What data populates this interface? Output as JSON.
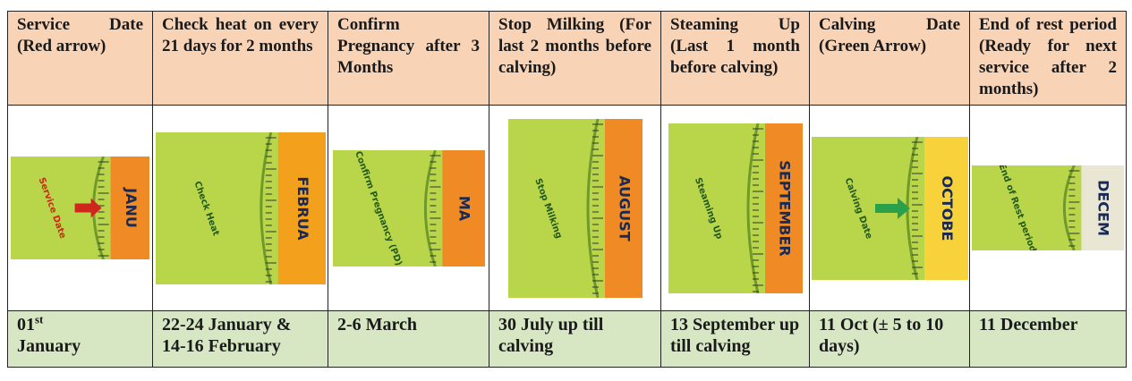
{
  "table": {
    "header": [
      "Service Date (Red arrow)",
      "Check heat on every 21 days for 2 months",
      "Confirm Pregnancy after 3 Months",
      "Stop Milking (For last 2 months before calving)",
      "Steaming Up (Last 1 month before calving)",
      "Calving Date (Green Arrow)",
      "End of rest period (Ready for next service after 2 months)"
    ],
    "images": [
      {
        "label": "Service Date",
        "month": "JANU"
      },
      {
        "label": "Check Heat",
        "month": "FEBRUA"
      },
      {
        "label": "Confirm Pregnancy (PD)",
        "month": "MA"
      },
      {
        "label": "Stop Milking",
        "month": "AUGUST"
      },
      {
        "label": "Steaming Up",
        "month": "SEPTEMBER"
      },
      {
        "label": "Calving Date",
        "month": "OCTOBE"
      },
      {
        "label": "End of Rest period",
        "month": "DECEM"
      }
    ],
    "dates": [
      {
        "day": "01",
        "suffix": "st",
        "month": "January"
      },
      "22-24 January & 14-16 February",
      "2-6 March",
      "30 July up till calving",
      "13 September up till calving",
      "11 Oct (± 5 to 10 days)",
      "11 December"
    ]
  }
}
